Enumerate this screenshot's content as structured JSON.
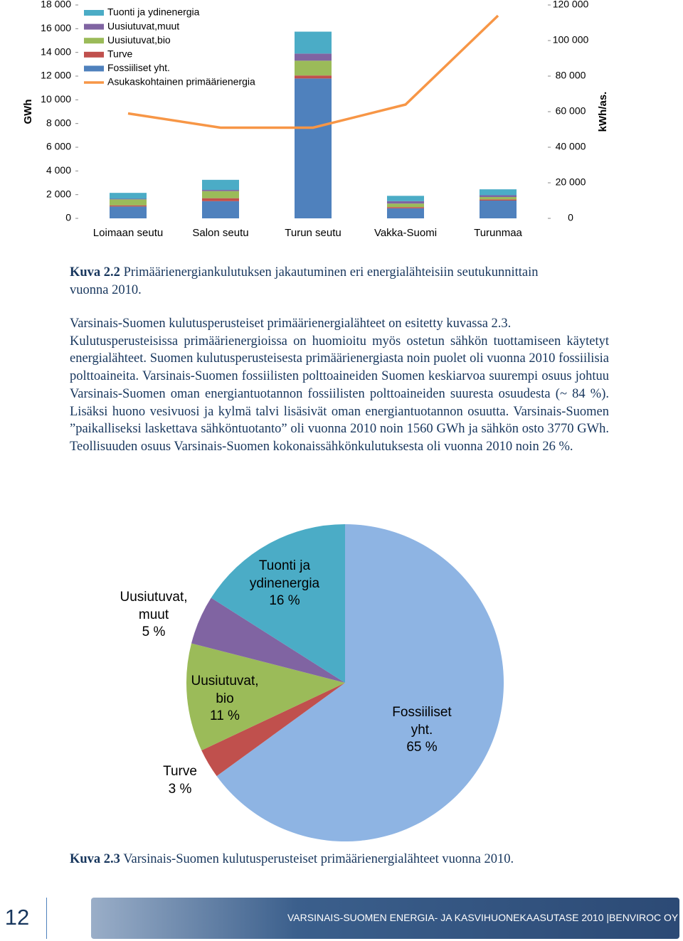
{
  "chart_data": [
    {
      "type": "bar",
      "stacked": true,
      "y_label": "GWh",
      "y2_label": "kWh/as.",
      "categories": [
        "Loimaan seutu",
        "Salon seutu",
        "Turun seutu",
        "Vakka-Suomi",
        "Turunmaa"
      ],
      "series": [
        {
          "name": "Fossiiliset yht.",
          "color": "#4f81bd",
          "values": [
            1000,
            1450,
            11800,
            850,
            1500
          ]
        },
        {
          "name": "Turve",
          "color": "#c0504d",
          "values": [
            100,
            250,
            250,
            100,
            100
          ]
        },
        {
          "name": "Uusiutuvat,bio",
          "color": "#9bbb59",
          "values": [
            500,
            600,
            1250,
            300,
            200
          ]
        },
        {
          "name": "Uusiutuvat,muut",
          "color": "#8064a2",
          "values": [
            50,
            100,
            600,
            200,
            150
          ]
        },
        {
          "name": "Tuonti ja ydinenergia",
          "color": "#4bacc6",
          "values": [
            500,
            850,
            1850,
            450,
            500
          ]
        },
        {
          "name": "Asukaskohtainen primäärienergia",
          "color": "#f79646",
          "type": "line",
          "axis": "y2",
          "values": [
            59000,
            51000,
            51000,
            64000,
            114000
          ]
        }
      ],
      "ylim": [
        0,
        18000
      ],
      "yticks": [
        0,
        {
          "value": 2000,
          "label": "2 000"
        },
        {
          "value": 4000,
          "label": "4 000"
        },
        {
          "value": 6000,
          "label": "6 000"
        },
        {
          "value": 8000,
          "label": "8 000"
        },
        {
          "value": 10000,
          "label": "10 000"
        },
        {
          "value": 12000,
          "label": "12 000"
        },
        {
          "value": 14000,
          "label": "14 000"
        },
        {
          "value": 16000,
          "label": "16 000"
        },
        {
          "value": 18000,
          "label": "18 000"
        }
      ],
      "y2lim": [
        0,
        120000
      ],
      "y2ticks": [
        0,
        {
          "value": 20000,
          "label": "20 000"
        },
        {
          "value": 40000,
          "label": "40 000"
        },
        {
          "value": 60000,
          "label": "60 000"
        },
        {
          "value": 80000,
          "label": "80 000"
        },
        {
          "value": 100000,
          "label": "100 000"
        },
        {
          "value": 120000,
          "label": "120 000"
        }
      ],
      "legend": "top-left",
      "grid": false
    },
    {
      "type": "pie",
      "categories": [
        "Fossiiliset yht.",
        "Turve",
        "Uusiutuvat, bio",
        "Uusiutuvat, muut",
        "Tuonti ja ydinenergia"
      ],
      "values": [
        65,
        3,
        11,
        5,
        16
      ],
      "value_labels": [
        "65 %",
        "3 %",
        "11 %",
        "5 %",
        "16 %"
      ],
      "colors": [
        "#8eb4e3",
        "#c0504d",
        "#9bbb59",
        "#8064a2",
        "#4bacc6"
      ]
    }
  ],
  "captions": [
    {
      "label": "Kuva 2.2",
      "text": "Primäärienergiankulutuksen jakautuminen eri energialähteisiin seutukunnittain vuonna 2010."
    },
    {
      "label": "Kuva 2.3",
      "text": "Varsinais-Suomen kulutusperusteiset primäärienergialähteet vuonna 2010."
    }
  ],
  "paragraphs": [
    "Varsinais-Suomen kulutusperusteiset primäärienergialähteet on esitetty kuvassa 2.3.",
    "Kulutusperusteisissa primäärienergioissa on huomioitu myös ostetun sähkön tuottamiseen käytetyt energialähteet. Suomen kulutusperusteisesta primäärienergiasta noin puolet oli vuonna 2010 fossiilisia polttoaineita. Varsinais-Suomen fossiilisten polttoaineiden Suomen keskiarvoa suurempi osuus johtuu Varsinais-Suomen oman energiantuotannon fossiilisten polttoaineiden suuresta osuudesta (~ 84 %). Lisäksi huono vesivuosi ja kylmä talvi lisäsivät oman energiantuotannon osuutta. Varsinais-Suomen ”paikalliseksi laskettava sähköntuotanto” oli vuonna 2010 noin 1560 GWh ja sähkön osto 3770 GWh. Teollisuuden osuus Varsinais-Suomen kokonais­sähkönkulutuksesta oli vuonna 2010 noin 26 %."
  ],
  "footer": {
    "page": "12",
    "text": "VARSINAIS-SUOMEN ENERGIA- JA KASVIHUONEKAASUTASE 2010 |BENVIROC OY"
  }
}
